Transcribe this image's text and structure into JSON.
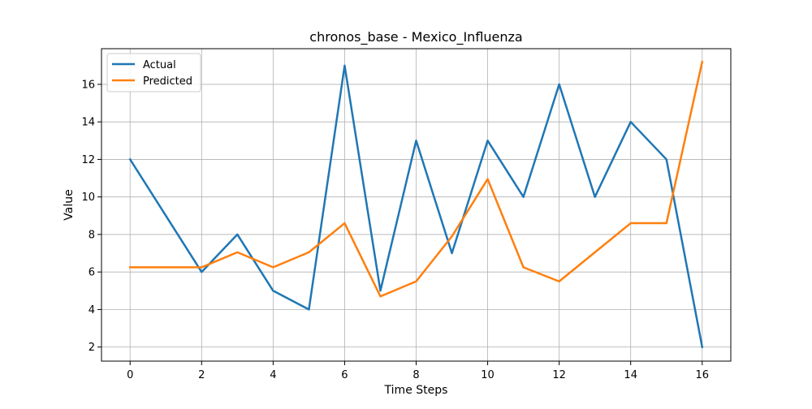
{
  "chart_data": {
    "type": "line",
    "title": "chronos_base - Mexico_Influenza",
    "xlabel": "Time Steps",
    "ylabel": "Value",
    "x": [
      0,
      1,
      2,
      3,
      4,
      5,
      6,
      7,
      8,
      9,
      10,
      11,
      12,
      13,
      14,
      15,
      16
    ],
    "xlim": [
      -0.8,
      16.8
    ],
    "ylim": [
      1.25,
      17.9
    ],
    "xticks": [
      0,
      2,
      4,
      6,
      8,
      10,
      12,
      14,
      16
    ],
    "yticks": [
      2,
      4,
      6,
      8,
      10,
      12,
      14,
      16
    ],
    "grid": true,
    "legend_position": "upper-left",
    "series": [
      {
        "name": "Actual",
        "color": "#1f77b4",
        "values": [
          12,
          9,
          6,
          8,
          5,
          4,
          17,
          5,
          13,
          7,
          13,
          10,
          16,
          10,
          14,
          12,
          2
        ]
      },
      {
        "name": "Predicted",
        "color": "#ff7f0e",
        "values": [
          6.25,
          6.25,
          6.25,
          7.05,
          6.25,
          7.05,
          8.6,
          4.7,
          5.5,
          7.9,
          10.95,
          6.25,
          5.5,
          7.05,
          8.6,
          8.6,
          17.2
        ]
      }
    ]
  }
}
